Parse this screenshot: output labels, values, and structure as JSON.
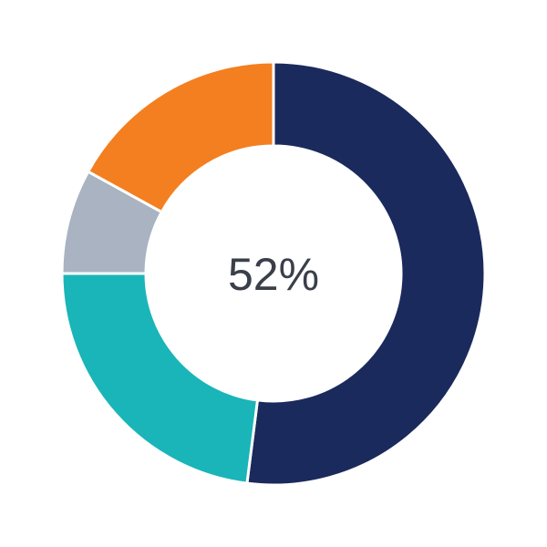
{
  "chart_data": {
    "type": "pie",
    "variant": "donut",
    "center_label": "52%",
    "values": [
      52,
      23,
      8,
      17
    ],
    "colors": [
      "#1b2a5c",
      "#1ab5b8",
      "#a9b3c1",
      "#f37f20"
    ],
    "start": "top",
    "direction": "clockwise",
    "legend": "none"
  }
}
